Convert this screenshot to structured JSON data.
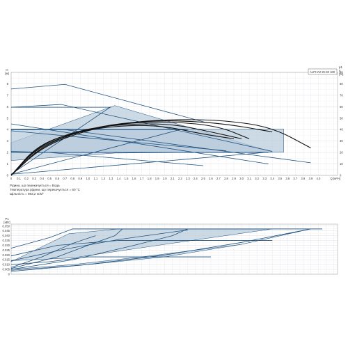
{
  "chart_data": [
    {
      "type": "line",
      "legend_text": "ALPHA2 25-80 180",
      "ylabel_left": "H",
      "yunit_left": "[м]",
      "ylabel_right": "η",
      "yunit_right": "[%]",
      "ylabel_right_extra": "p1",
      "xunit": "Q [м³/ч]",
      "x_ticks": [
        "0",
        "0.1",
        "0.2",
        "0.3",
        "0.4",
        "0.5",
        "0.6",
        "0.7",
        "0.8",
        "0.9",
        "1.0",
        "1.1",
        "1.2",
        "1.3",
        "1.4",
        "1.5",
        "1.6",
        "1.7",
        "1.8",
        "1.9",
        "2.0",
        "2.1",
        "2.2",
        "2.3",
        "2.4",
        "2.5",
        "2.6",
        "2.7",
        "2.8",
        "2.9",
        "3.0",
        "3.1",
        "3.2",
        "3.3",
        "3.4",
        "3.5",
        "3.6",
        "3.7",
        "3.8",
        "3.9",
        "4.0"
      ],
      "y_ticks_left": [
        "0",
        "1",
        "2",
        "3",
        "4",
        "5",
        "6",
        "7",
        "8"
      ],
      "y_ticks_right": [
        "0",
        "10",
        "20",
        "30",
        "40",
        "50",
        "60",
        "70",
        "80",
        "90"
      ],
      "xlim": [
        0,
        4.25
      ],
      "ylim_left": [
        0,
        9
      ],
      "ylim_right": [
        0,
        90
      ],
      "grid": true,
      "areas": [
        {
          "name": "proportional",
          "points": [
            [
              0,
              2.85
            ],
            [
              1.35,
              6.1
            ],
            [
              3.4,
              2.05
            ],
            [
              1.35,
              1.95
            ],
            [
              0,
              1.3
            ]
          ]
        },
        {
          "name": "constant",
          "points": [
            [
              0,
              4.05
            ],
            [
              3.55,
              4.05
            ],
            [
              3.55,
              2.02
            ],
            [
              0,
              2.02
            ]
          ]
        }
      ],
      "head_series": [
        {
          "points": [
            [
              0,
              7.55
            ],
            [
              0.7,
              7.95
            ],
            [
              2.55,
              4.6
            ]
          ]
        },
        {
          "points": [
            [
              0,
              5.95
            ],
            [
              0.65,
              6.2
            ],
            [
              3.4,
              2.1
            ]
          ]
        },
        {
          "points": [
            [
              0,
              4.05
            ],
            [
              0.7,
              4.0
            ],
            [
              3.9,
              1.1
            ]
          ]
        },
        {
          "points": [
            [
              0,
              2.1
            ],
            [
              0.5,
              2.0
            ],
            [
              2.5,
              0.85
            ]
          ]
        },
        {
          "points": [
            [
              0,
              5.95
            ],
            [
              1.3,
              5.95
            ]
          ]
        },
        {
          "points": [
            [
              0,
              4.0
            ],
            [
              2.3,
              4.0
            ]
          ]
        },
        {
          "points": [
            [
              0,
              2.0
            ],
            [
              3.35,
              2.0
            ]
          ]
        },
        {
          "points": [
            [
              0,
              0.1
            ],
            [
              1.3,
              6.0
            ]
          ]
        },
        {
          "points": [
            [
              0,
              0.1
            ],
            [
              2.2,
              4.0
            ]
          ]
        },
        {
          "points": [
            [
              0,
              0.1
            ],
            [
              3.3,
              2.0
            ]
          ]
        },
        {
          "points": [
            [
              0,
              4.5
            ],
            [
              3.35,
              1.0
            ]
          ]
        },
        {
          "points": [
            [
              0,
              3.9
            ],
            [
              2.8,
              2.15
            ]
          ]
        }
      ],
      "efficiency_series": [
        {
          "points": [
            [
              0,
              0
            ],
            [
              0.4,
              25
            ],
            [
              1.0,
              40
            ],
            [
              1.6,
              47
            ],
            [
              2.2,
              49
            ],
            [
              2.8,
              48
            ],
            [
              3.4,
              42
            ],
            [
              3.9,
              24
            ]
          ]
        },
        {
          "points": [
            [
              0,
              0
            ],
            [
              0.4,
              26
            ],
            [
              1.0,
              41
            ],
            [
              1.6,
              47
            ],
            [
              2.2,
              48
            ],
            [
              2.8,
              45
            ],
            [
              3.4,
              38
            ]
          ]
        },
        {
          "points": [
            [
              0,
              0
            ],
            [
              0.35,
              25
            ],
            [
              0.9,
              39
            ],
            [
              1.5,
              46
            ],
            [
              2.1,
              47
            ],
            [
              2.7,
              43
            ],
            [
              3.1,
              32
            ]
          ]
        },
        {
          "points": [
            [
              0,
              0
            ],
            [
              0.35,
              26
            ],
            [
              0.9,
              40
            ],
            [
              1.5,
              45
            ],
            [
              2.1,
              45
            ],
            [
              2.6,
              38
            ],
            [
              3.0,
              32
            ]
          ]
        },
        {
          "points": [
            [
              0,
              0
            ],
            [
              0.35,
              27
            ],
            [
              0.9,
              39
            ],
            [
              1.5,
              44
            ],
            [
              2.0,
              43
            ],
            [
              2.5,
              36
            ],
            [
              2.9,
              32
            ]
          ]
        }
      ]
    },
    {
      "type": "area",
      "ylabel": "P1",
      "yunit": "[кВт]",
      "y_ticks": [
        "0",
        "0.005",
        "0.010",
        "0.015",
        "0.020",
        "0.025",
        "0.030",
        "0.035",
        "0.040",
        "0.045",
        "0.050"
      ],
      "xlim": [
        0,
        4.25
      ],
      "ylim": [
        0,
        0.052
      ],
      "grid": true,
      "areas": [
        {
          "name": "proportional",
          "points": [
            [
              0,
              0.013
            ],
            [
              0.75,
              0.042
            ],
            [
              1.4,
              0.047
            ],
            [
              3.4,
              0.047
            ],
            [
              2.0,
              0.031
            ],
            [
              0.8,
              0.017
            ],
            [
              0,
              0.014
            ]
          ]
        },
        {
          "name": "constant",
          "points": [
            [
              0,
              0.004
            ],
            [
              1.0,
              0.01
            ],
            [
              2.0,
              0.018
            ],
            [
              3.0,
              0.031
            ],
            [
              3.9,
              0.047
            ],
            [
              3.0,
              0.031
            ],
            [
              1.8,
              0.019
            ],
            [
              0.8,
              0.01
            ],
            [
              0,
              0.005
            ]
          ]
        }
      ],
      "power_series": [
        {
          "points": [
            [
              0,
              0.027
            ],
            [
              0.5,
              0.038
            ],
            [
              0.8,
              0.047
            ],
            [
              4.05,
              0.047
            ]
          ]
        },
        {
          "points": [
            [
              0,
              0.019
            ],
            [
              0.6,
              0.03
            ],
            [
              1.4,
              0.035
            ],
            [
              3.4,
              0.035
            ]
          ]
        },
        {
          "points": [
            [
              0,
              0.01
            ],
            [
              0.5,
              0.013
            ],
            [
              1.0,
              0.018
            ],
            [
              2.6,
              0.018
            ]
          ]
        },
        {
          "points": [
            [
              0,
              0.003
            ],
            [
              1.0,
              0.01
            ],
            [
              2.0,
              0.02
            ],
            [
              3.0,
              0.033
            ],
            [
              3.9,
              0.047
            ]
          ]
        },
        {
          "points": [
            [
              0,
              0.005
            ],
            [
              0.8,
              0.015
            ],
            [
              1.6,
              0.03
            ],
            [
              2.1,
              0.04
            ],
            [
              2.3,
              0.047
            ]
          ]
        },
        {
          "points": [
            [
              0,
              0.006
            ],
            [
              0.6,
              0.018
            ],
            [
              1.0,
              0.03
            ],
            [
              1.35,
              0.04
            ],
            [
              1.45,
              0.047
            ]
          ]
        },
        {
          "points": [
            [
              0,
              0.014
            ],
            [
              0.7,
              0.026
            ],
            [
              1.4,
              0.036
            ],
            [
              2.3,
              0.046
            ]
          ]
        },
        {
          "points": [
            [
              0,
              0.007
            ],
            [
              0.4,
              0.018
            ],
            [
              0.8,
              0.032
            ],
            [
              1.1,
              0.04
            ]
          ]
        }
      ]
    }
  ],
  "fluid": {
    "line1": "Рідина, що перекачується = Вода",
    "line2": "Температура рідини, що перекачується = 60 °C",
    "line3": "Щільність = 983,2 кг/м³"
  }
}
